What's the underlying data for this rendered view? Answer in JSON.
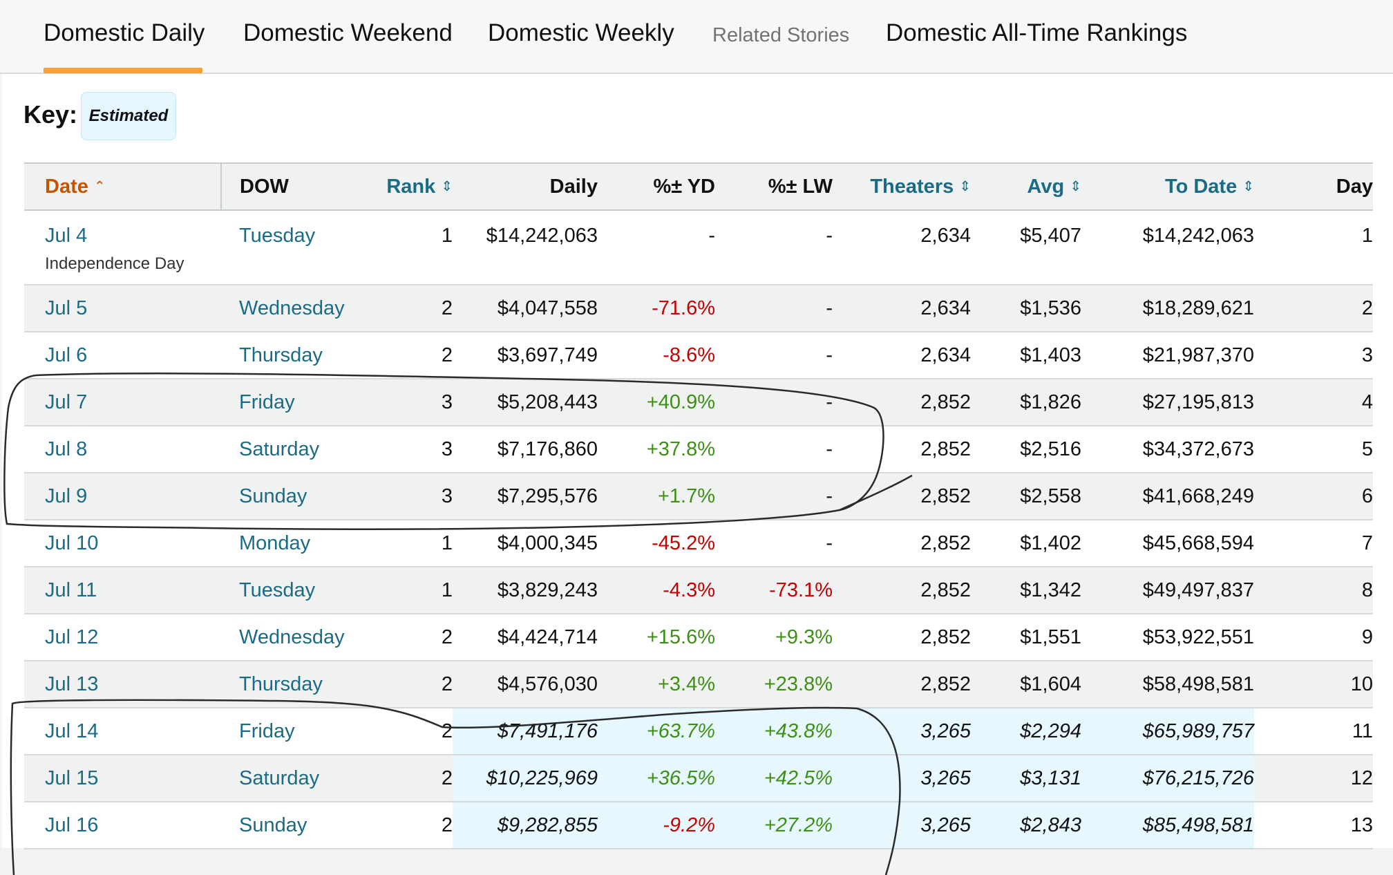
{
  "tabs": [
    {
      "label": "Domestic Daily",
      "active": true
    },
    {
      "label": "Domestic Weekend"
    },
    {
      "label": "Domestic Weekly"
    },
    {
      "label": "Related Stories",
      "muted": true
    },
    {
      "label": "Domestic All-Time Rankings"
    }
  ],
  "key": {
    "label": "Key:",
    "estimated": "Estimated"
  },
  "table": {
    "headers": {
      "date": "Date",
      "dow": "DOW",
      "rank": "Rank",
      "daily": "Daily",
      "yd": "%± YD",
      "lw": "%± LW",
      "theaters": "Theaters",
      "avg": "Avg",
      "todate": "To Date",
      "day": "Day"
    },
    "rows": [
      {
        "date": "Jul 4",
        "note": "Independence Day",
        "dow": "Tuesday",
        "rank": "1",
        "daily": "$14,242,063",
        "yd": "-",
        "lw": "-",
        "theaters": "2,634",
        "avg": "$5,407",
        "todate": "$14,242,063",
        "day": "1"
      },
      {
        "date": "Jul 5",
        "dow": "Wednesday",
        "rank": "2",
        "daily": "$4,047,558",
        "yd": "-71.6%",
        "lw": "-",
        "theaters": "2,634",
        "avg": "$1,536",
        "todate": "$18,289,621",
        "day": "2"
      },
      {
        "date": "Jul 6",
        "dow": "Thursday",
        "rank": "2",
        "daily": "$3,697,749",
        "yd": "-8.6%",
        "lw": "-",
        "theaters": "2,634",
        "avg": "$1,403",
        "todate": "$21,987,370",
        "day": "3"
      },
      {
        "date": "Jul 7",
        "dow": "Friday",
        "rank": "3",
        "daily": "$5,208,443",
        "yd": "+40.9%",
        "lw": "-",
        "theaters": "2,852",
        "avg": "$1,826",
        "todate": "$27,195,813",
        "day": "4"
      },
      {
        "date": "Jul 8",
        "dow": "Saturday",
        "rank": "3",
        "daily": "$7,176,860",
        "yd": "+37.8%",
        "lw": "-",
        "theaters": "2,852",
        "avg": "$2,516",
        "todate": "$34,372,673",
        "day": "5"
      },
      {
        "date": "Jul 9",
        "dow": "Sunday",
        "rank": "3",
        "daily": "$7,295,576",
        "yd": "+1.7%",
        "lw": "-",
        "theaters": "2,852",
        "avg": "$2,558",
        "todate": "$41,668,249",
        "day": "6"
      },
      {
        "date": "Jul 10",
        "dow": "Monday",
        "rank": "1",
        "daily": "$4,000,345",
        "yd": "-45.2%",
        "lw": "-",
        "theaters": "2,852",
        "avg": "$1,402",
        "todate": "$45,668,594",
        "day": "7"
      },
      {
        "date": "Jul 11",
        "dow": "Tuesday",
        "rank": "1",
        "daily": "$3,829,243",
        "yd": "-4.3%",
        "lw": "-73.1%",
        "theaters": "2,852",
        "avg": "$1,342",
        "todate": "$49,497,837",
        "day": "8"
      },
      {
        "date": "Jul 12",
        "dow": "Wednesday",
        "rank": "2",
        "daily": "$4,424,714",
        "yd": "+15.6%",
        "lw": "+9.3%",
        "theaters": "2,852",
        "avg": "$1,551",
        "todate": "$53,922,551",
        "day": "9"
      },
      {
        "date": "Jul 13",
        "dow": "Thursday",
        "rank": "2",
        "daily": "$4,576,030",
        "yd": "+3.4%",
        "lw": "+23.8%",
        "theaters": "2,852",
        "avg": "$1,604",
        "todate": "$58,498,581",
        "day": "10"
      },
      {
        "date": "Jul 14",
        "dow": "Friday",
        "rank": "2",
        "daily": "$7,491,176",
        "yd": "+63.7%",
        "lw": "+43.8%",
        "theaters": "3,265",
        "avg": "$2,294",
        "todate": "$65,989,757",
        "day": "11",
        "estimated": true
      },
      {
        "date": "Jul 15",
        "dow": "Saturday",
        "rank": "2",
        "daily": "$10,225,969",
        "yd": "+36.5%",
        "lw": "+42.5%",
        "theaters": "3,265",
        "avg": "$3,131",
        "todate": "$76,215,726",
        "day": "12",
        "estimated": true
      },
      {
        "date": "Jul 16",
        "dow": "Sunday",
        "rank": "2",
        "daily": "$9,282,855",
        "yd": "-9.2%",
        "lw": "+27.2%",
        "theaters": "3,265",
        "avg": "$2,843",
        "todate": "$85,498,581",
        "day": "13",
        "estimated": true
      }
    ]
  },
  "colors": {
    "link": "#1b6a86",
    "sorted_header": "#c45500",
    "tab_underline": "#f7a13a",
    "negative": "#c40000",
    "positive": "#3e8f16",
    "estimated_bg": "#e6f8fd"
  },
  "icons": {
    "sort_ascending": "chevron-up-icon",
    "sortable": "sort-updown-icon"
  }
}
